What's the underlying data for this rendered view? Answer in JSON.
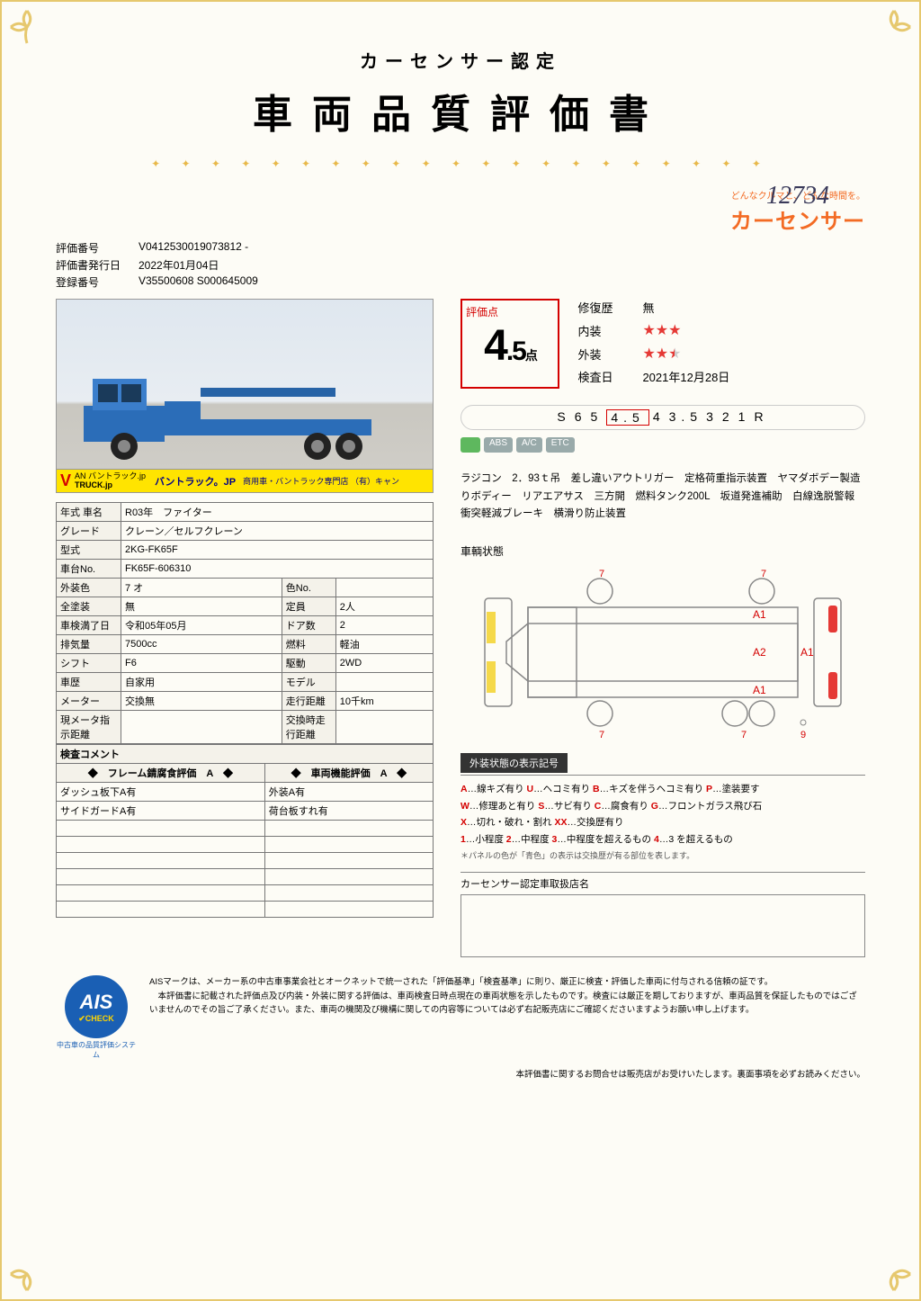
{
  "header": {
    "subtitle": "カーセンサー認定",
    "title": "車両品質評価書",
    "handwritten_number": "12734"
  },
  "brand": {
    "tagline": "どんなクルマと、どんな時間を。",
    "name": "カーセンサー"
  },
  "meta": {
    "eval_no_label": "評価番号",
    "eval_no": "V0412530019073812 -",
    "issue_label": "評価書発行日",
    "issue": "2022年01月04日",
    "reg_label": "登録番号",
    "reg": "V35500608 S000645009"
  },
  "photo_banner": {
    "v": "V",
    "l1": "AN バントラック.jp",
    "l2": "TRUCK.jp",
    "tagline": "バントラック。JP",
    "sub": "商用車・バントラック専門店  （有）キャン"
  },
  "spec_rows": [
    [
      "年式 車名",
      "R03年　ファイター",
      "",
      ""
    ],
    [
      "グレード",
      "クレーン／セルフクレーン",
      "",
      ""
    ],
    [
      "型式",
      "2KG-FK65F",
      "",
      ""
    ],
    [
      "車台No.",
      "FK65F-606310",
      "",
      ""
    ],
    [
      "外装色",
      "7 オ",
      "色No.",
      ""
    ],
    [
      "全塗装",
      "無",
      "定員",
      "2人"
    ],
    [
      "車検満了日",
      "令和05年05月",
      "ドア数",
      "2"
    ],
    [
      "排気量",
      "7500cc",
      "燃料",
      "軽油"
    ],
    [
      "シフト",
      "F6",
      "駆動",
      "2WD"
    ],
    [
      "車歴",
      "自家用",
      "モデル",
      ""
    ],
    [
      "メーター",
      "交換無",
      "走行距離",
      "10千km"
    ],
    [
      "現メータ指示距離",
      "",
      "交換時走行距離",
      ""
    ]
  ],
  "notes_header": "検査コメント",
  "notes_subheaders": [
    "◆　フレーム錆腐食評価　A　◆",
    "◆　車両機能評価　A　◆"
  ],
  "notes_rows": [
    [
      "ダッシュ板下A有",
      "外装A有"
    ],
    [
      "サイドガードA有",
      "荷台板すれ有"
    ],
    [
      "",
      ""
    ],
    [
      "",
      ""
    ],
    [
      "",
      ""
    ],
    [
      "",
      ""
    ],
    [
      "",
      ""
    ],
    [
      "",
      ""
    ]
  ],
  "score": {
    "label": "評価点",
    "value": "4",
    "decimal": ".5",
    "unit": "点",
    "rows": [
      {
        "label": "修復歴",
        "value": "無",
        "stars": 0
      },
      {
        "label": "内装",
        "value": "",
        "stars": 3
      },
      {
        "label": "外装",
        "value": "",
        "stars": 2.5
      },
      {
        "label": "検査日",
        "value": "2021年12月28日",
        "stars": 0
      }
    ]
  },
  "scale": [
    "S",
    "6",
    "5",
    "4.5",
    "4",
    "3.5",
    "3",
    "2",
    "1",
    "R"
  ],
  "scale_selected": "4.5",
  "badges": [
    "",
    "ABS",
    "A/C",
    "ETC"
  ],
  "description": "ラジコン　2．93ｔ吊　差し違いアウトリガー　定格荷重指示装置　ヤマダボデー製造りボディー　リアエアサス　三方開　燃料タンク200L　坂道発進補助　白線逸脱警報　衝突軽減ブレーキ　横滑り防止装置",
  "diagram_label": "車輌状態",
  "diagram_marks": {
    "A1_top": "A1",
    "A2": "A2",
    "A1_side": "A1",
    "A1_bot": "A1",
    "t7a": "7",
    "t7b": "7",
    "b7a": "7",
    "b7b": "7",
    "n9": "9"
  },
  "legend_title": "外装状態の表示記号",
  "legend_lines": [
    "A…線キズ有り U…ヘコミ有り B…キズを伴うヘコミ有り P…塗装要す",
    "W…修理あと有り S…サビ有り C…腐食有り G…フロントガラス飛び石",
    "X…切れ・破れ・割れ XX…交換歴有り",
    "1…小程度 2…中程度 3…中程度を超えるもの 4…3 を超えるもの"
  ],
  "legend_note": "＊パネルの色が「青色」の表示は交換歴が有る部位を表します。",
  "dealer_label": "カーセンサー認定車取扱店名",
  "ais": {
    "circle_text": "AIS",
    "check": "CHECK",
    "caption": "中古車の品質評価システム",
    "text": "AISマークは、メーカー系の中古車事業会社とオークネットで統一された「評価基準」「検査基準」に則り、厳正に検査・評価した車両に付与される信頼の証です。\n　本評価書に記載された評価点及び内装・外装に関する評価は、車両検査日時点現在の車両状態を示したものです。検査には厳正を期しておりますが、車両品質を保証したものではございませんのでその旨ご了承ください。また、車両の機関及び機構に関しての内容等については必ず右記販売店にご確認くださいますようお願い申し上げます。"
  },
  "footnote": "本評価書に関するお問合せは販売店がお受けいたします。裏面事項を必ずお読みください。",
  "colors": {
    "accent": "#d40000",
    "gold": "#e6c86e",
    "orange": "#f36b24"
  }
}
